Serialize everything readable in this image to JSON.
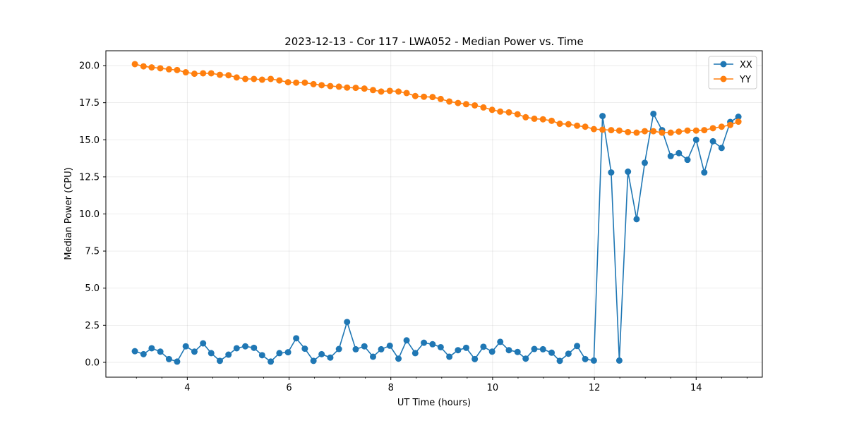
{
  "chart_data": {
    "type": "line",
    "title": "2023-12-13 - Cor 117 - LWA052 - Median Power vs. Time",
    "xlabel": "UT Time (hours)",
    "ylabel": "Median Power (CPU)",
    "xlim": [
      2.4,
      15.3
    ],
    "ylim": [
      -1.0,
      21.0
    ],
    "xticks": [
      4,
      6,
      8,
      10,
      12,
      14
    ],
    "xtick_labels": [
      "4",
      "6",
      "8",
      "10",
      "12",
      "14"
    ],
    "yticks": [
      0,
      2.5,
      5,
      7.5,
      10,
      12.5,
      15,
      17.5,
      20
    ],
    "ytick_labels": [
      "0.0",
      "2.5",
      "5.0",
      "7.5",
      "10.0",
      "12.5",
      "15.0",
      "17.5",
      "20.0"
    ],
    "grid": true,
    "legend_position": "top-right",
    "x": [
      2.97,
      3.14,
      3.3,
      3.47,
      3.64,
      3.8,
      3.97,
      4.14,
      4.31,
      4.47,
      4.64,
      4.81,
      4.97,
      5.14,
      5.31,
      5.47,
      5.64,
      5.81,
      5.98,
      6.14,
      6.31,
      6.48,
      6.64,
      6.81,
      6.98,
      7.14,
      7.31,
      7.48,
      7.65,
      7.81,
      7.98,
      8.15,
      8.31,
      8.48,
      8.65,
      8.82,
      8.98,
      9.15,
      9.32,
      9.48,
      9.65,
      9.82,
      9.99,
      10.15,
      10.32,
      10.49,
      10.65,
      10.82,
      10.99,
      11.16,
      11.32,
      11.49,
      11.66,
      11.82,
      11.99,
      12.16,
      12.33,
      12.49,
      12.66,
      12.83,
      12.99,
      13.16,
      13.33,
      13.5,
      13.66,
      13.83,
      14.0,
      14.16,
      14.33,
      14.5,
      14.67,
      14.83
    ],
    "series": [
      {
        "name": "XX",
        "color": "#1f77b4",
        "values": [
          0.75,
          0.55,
          0.95,
          0.72,
          0.22,
          0.05,
          1.08,
          0.72,
          1.28,
          0.62,
          0.1,
          0.52,
          0.95,
          1.08,
          0.98,
          0.48,
          0.05,
          0.62,
          0.68,
          1.62,
          0.92,
          0.1,
          0.55,
          0.32,
          0.9,
          2.72,
          0.88,
          1.08,
          0.38,
          0.88,
          1.12,
          0.25,
          1.48,
          0.62,
          1.32,
          1.22,
          1.02,
          0.38,
          0.82,
          0.98,
          0.22,
          1.05,
          0.72,
          1.38,
          0.82,
          0.7,
          0.25,
          0.9,
          0.88,
          0.65,
          0.1,
          0.58,
          1.1,
          0.22,
          0.12,
          16.6,
          12.8,
          0.12,
          12.85,
          9.65,
          13.45,
          16.75,
          15.65,
          13.9,
          14.1,
          13.65,
          15.0,
          12.8,
          14.9,
          14.45,
          16.2,
          16.55
        ]
      },
      {
        "name": "YY",
        "color": "#ff7f0e",
        "values": [
          20.1,
          19.95,
          19.88,
          19.82,
          19.75,
          19.7,
          19.55,
          19.45,
          19.48,
          19.48,
          19.38,
          19.35,
          19.2,
          19.1,
          19.1,
          19.05,
          19.1,
          19.0,
          18.88,
          18.85,
          18.85,
          18.75,
          18.68,
          18.62,
          18.58,
          18.52,
          18.5,
          18.45,
          18.35,
          18.25,
          18.3,
          18.25,
          18.15,
          17.95,
          17.9,
          17.88,
          17.75,
          17.58,
          17.48,
          17.4,
          17.32,
          17.18,
          17.02,
          16.9,
          16.85,
          16.72,
          16.52,
          16.42,
          16.38,
          16.28,
          16.08,
          16.05,
          15.95,
          15.88,
          15.72,
          15.68,
          15.65,
          15.62,
          15.52,
          15.48,
          15.58,
          15.58,
          15.48,
          15.48,
          15.55,
          15.62,
          15.62,
          15.65,
          15.78,
          15.88,
          16.0,
          16.22
        ]
      }
    ]
  }
}
